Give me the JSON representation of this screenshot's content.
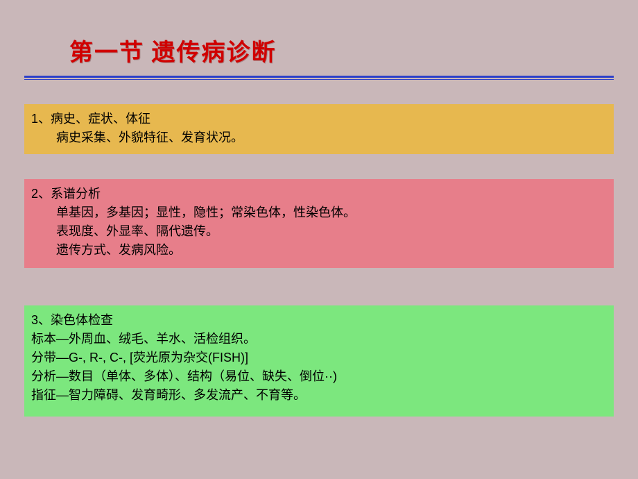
{
  "title": "第一节  遗传病诊断",
  "box1": {
    "bg": "#e7b84f",
    "heading": "1、病史、症状、体征",
    "line1": "病史采集、外貌特征、发育状况。"
  },
  "box2": {
    "bg": "#e77e8a",
    "heading": "2、系谱分析",
    "line1": "单基因，多基因；显性，隐性；常染色体，性染色体。",
    "line2": "表现度、外显率、隔代遗传。",
    "line3": "遗传方式、发病风险。"
  },
  "box3": {
    "bg": "#7ce77e",
    "heading": "3、染色体检查",
    "line1": "标本—外周血、绒毛、羊水、活检组织。",
    "line2": "分带—G-, R-, C-, [荧光原为杂交(FISH)]",
    "line3": "分析—数目（单体、多体）、结构（易位、缺失、倒位··)",
    "line4": "指征—智力障碍、发育畸形、多发流产、不育等。"
  },
  "colors": {
    "background": "#c9b7b9",
    "title": "#d00000",
    "divider": "#2b3fc9"
  }
}
